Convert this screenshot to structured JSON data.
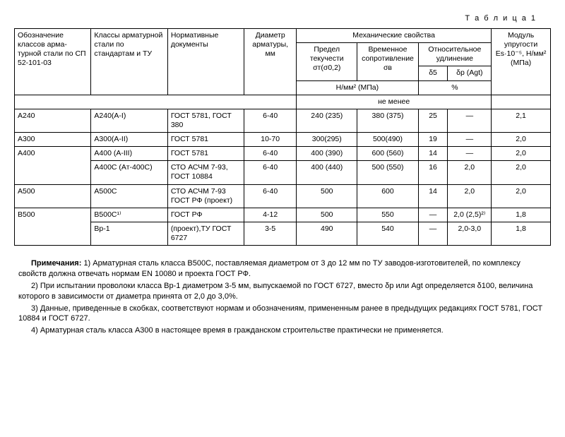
{
  "caption": "Т а б л и ц а 1",
  "head": {
    "c1": "Обозначение классов арма­турной стали по СП 52-101-03",
    "c2": "Классы арматур­ной стали по стандартам и ТУ",
    "c3": "Нормативные документы",
    "c4": "Диаметр армату­ры, мм",
    "mech": "Механические свойства",
    "yield": "Предел текучести σт(σ0,2)",
    "tensile": "Временное сопро­тивление σв",
    "elong": "Относитель­ное удлинение",
    "d5": "δ5",
    "dp": "δр (Аgt)",
    "units1": "Н/мм² (МПа)",
    "units2": "%",
    "min": "не менее",
    "mod": "Модуль упруго­сти Еs·10⁻⁵, Н/мм² (МПа)"
  },
  "rows": [
    {
      "c1": "А240",
      "c2": "А240(А-I)",
      "c3": "ГОСТ 5781, ГОСТ 380",
      "c4": "6-40",
      "y": "240 (235)",
      "t": "380 (375)",
      "d5": "25",
      "dp": "—",
      "m": "2,1"
    },
    {
      "c1": "А300",
      "c2": "А300(А-II)",
      "c3": "ГОСТ 5781",
      "c4": "10-70",
      "y": "300(295)",
      "t": "500(490)",
      "d5": "19",
      "dp": "—",
      "m": "2,0"
    },
    {
      "c1": "А400",
      "c2": "А400 (А-III)",
      "c3": "ГОСТ 5781",
      "c4": "6-40",
      "y": "400 (390)",
      "t": "600 (560)",
      "d5": "14",
      "dp": "—",
      "m": "2,0"
    },
    {
      "c1": "",
      "c2": "А400С (Ат-400С)",
      "c3": "СТО АСЧМ 7-93, ГОСТ 10884",
      "c4": "6-40",
      "y": "400 (440)",
      "t": "500 (550)",
      "d5": "16",
      "dp": "2,0",
      "m": "2,0"
    },
    {
      "c1": "А500",
      "c2": "А500С",
      "c3": "СТО АСЧМ 7-93 ГОСТ РФ (проект)",
      "c4": "6-40",
      "y": "500",
      "t": "600",
      "d5": "14",
      "dp": "2,0",
      "m": "2,0"
    },
    {
      "c1": "В500",
      "c2": "В500С¹⁾",
      "c3": "ГОСТ РФ",
      "c4": "4-12",
      "y": "500",
      "t": "550",
      "d5": "—",
      "dp": "2,0 (2,5)²⁾",
      "m": "1,8"
    },
    {
      "c1": "",
      "c2": "Вр-1",
      "c3": "(проект),ТУ ГОСТ 6727",
      "c4": "3-5",
      "y": "490",
      "t": "540",
      "d5": "—",
      "dp": "2,0-3,0",
      "m": "1,8"
    }
  ],
  "notes_label": "Примечания:",
  "notes": [
    "1) Арматурная сталь класса В500С, поставляемая диаметром от 3 до 12 мм по ТУ заводов-изготовителей, по комплексу свойств должна отвечать нормам EN 10080 и проекта ГОСТ РФ.",
    "2) При испытании проволоки класса Вр-1 диаметром 3-5 мм, выпускаемой по ГОСТ 6727, вместо δр или Аgt  определяется δ100, величина которого в зависимости от диаметра принята от 2,0 до 3,0%.",
    "3) Данные, приведенные в скобках, соответствуют нормам и обозначениям, примененным ранее в предыдущих редакциях ГОСТ 5781, ГОСТ 10884 и ГОСТ 6727.",
    "4) Арматурная сталь класса А300 в настоящее время в гражданском строительстве практически не применяется."
  ],
  "col_widths": [
    "88",
    "88",
    "88",
    "60",
    "70",
    "70",
    "34",
    "50",
    "68"
  ]
}
